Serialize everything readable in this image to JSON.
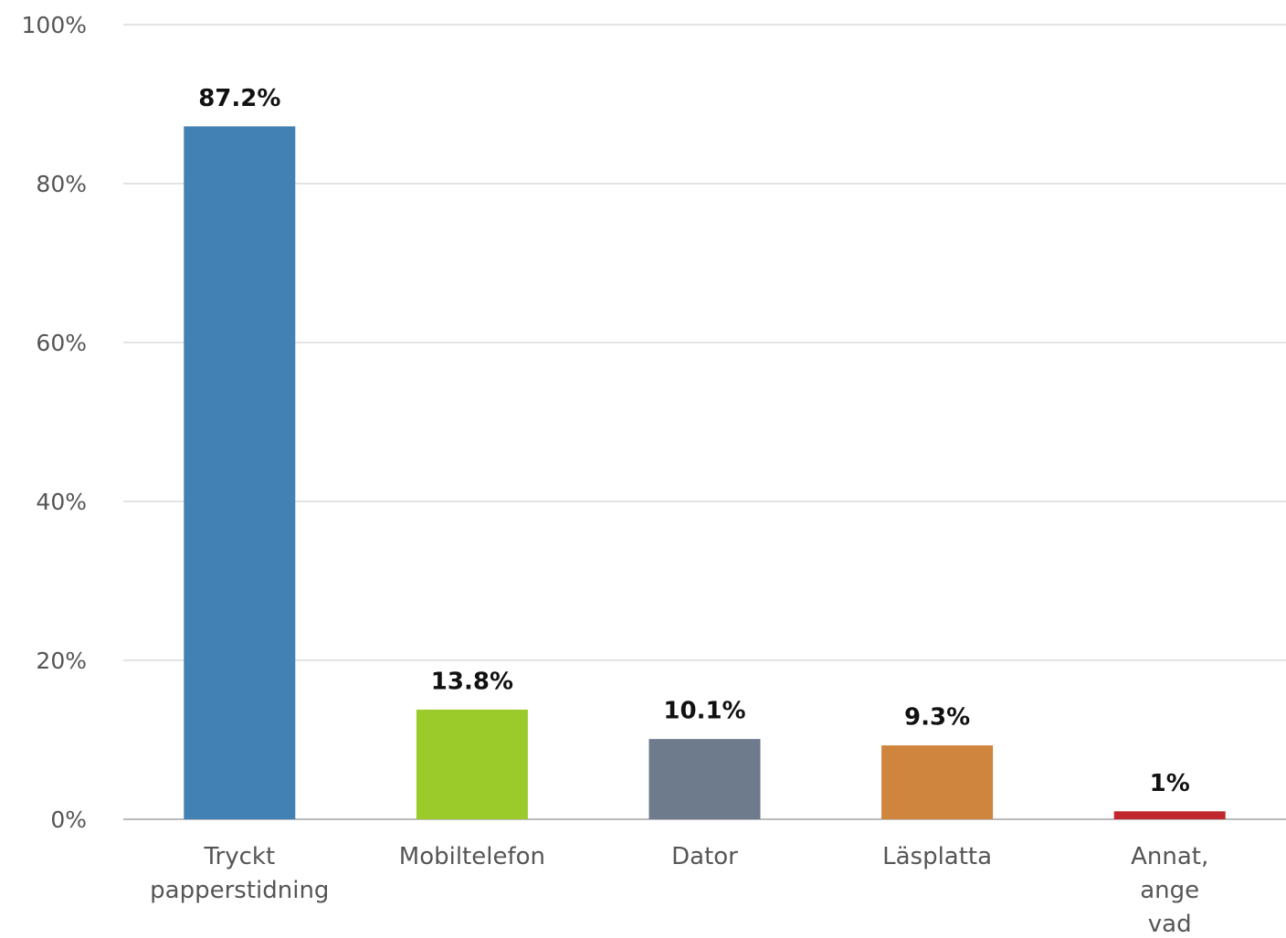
{
  "chart_data": {
    "type": "bar",
    "categories": [
      "Tryckt papperstidning",
      "Mobiltelefon",
      "Dator",
      "Läsplatta",
      "Annat, ange vad"
    ],
    "values": [
      87.2,
      13.8,
      10.1,
      9.3,
      1
    ],
    "value_labels": [
      "87.2%",
      "13.8%",
      "10.1%",
      "9.3%",
      "1%"
    ],
    "colors": [
      "#4181b3",
      "#9acb2b",
      "#6e7b8d",
      "#cf853d",
      "#c0282e"
    ],
    "ylim": [
      0,
      100
    ],
    "yticks": [
      {
        "value": 0,
        "label": "0%"
      },
      {
        "value": 20,
        "label": "20%"
      },
      {
        "value": 40,
        "label": "40%"
      },
      {
        "value": 60,
        "label": "60%"
      },
      {
        "value": 80,
        "label": "80%"
      },
      {
        "value": 100,
        "label": "100%"
      }
    ],
    "grid": true
  }
}
